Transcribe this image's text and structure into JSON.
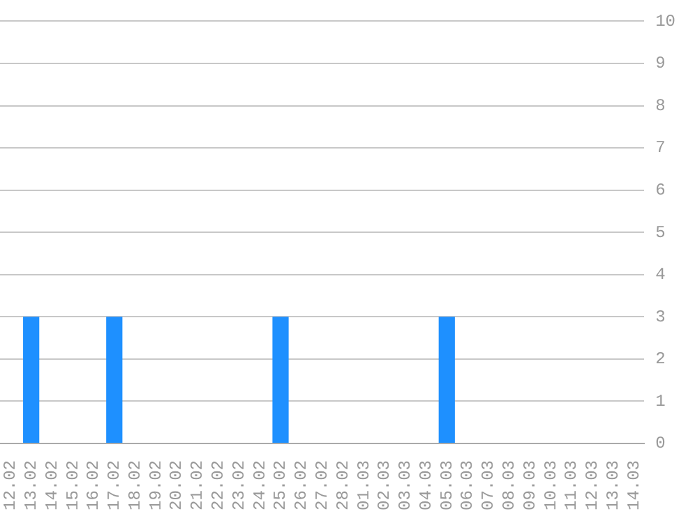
{
  "chart_data": {
    "type": "bar",
    "categories": [
      "12.02",
      "13.02",
      "14.02",
      "15.02",
      "16.02",
      "17.02",
      "18.02",
      "19.02",
      "20.02",
      "21.02",
      "22.02",
      "23.02",
      "24.02",
      "25.02",
      "26.02",
      "27.02",
      "28.02",
      "01.03",
      "02.03",
      "03.03",
      "04.03",
      "05.03",
      "06.03",
      "07.03",
      "08.03",
      "09.03",
      "10.03",
      "11.03",
      "12.03",
      "13.03",
      "14.03"
    ],
    "values": [
      0,
      3,
      0,
      0,
      0,
      3,
      0,
      0,
      0,
      0,
      0,
      0,
      0,
      3,
      0,
      0,
      0,
      0,
      0,
      0,
      0,
      3,
      0,
      0,
      0,
      0,
      0,
      0,
      0,
      0,
      0
    ],
    "color": "#1e90ff",
    "ylim": [
      0,
      10
    ],
    "yticks": [
      0,
      1,
      2,
      3,
      4,
      5,
      6,
      7,
      8,
      9,
      10
    ],
    "grid": "y"
  }
}
